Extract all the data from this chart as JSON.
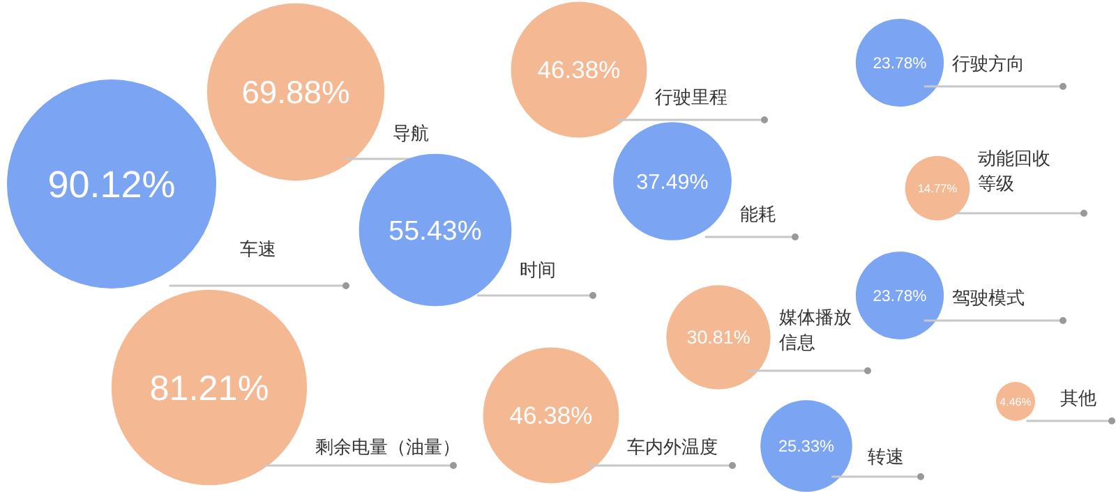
{
  "chart_data": {
    "type": "other",
    "categories": [
      "车速",
      "剩余电量（油量）",
      "导航",
      "时间",
      "车内外温度",
      "行驶里程",
      "能耗",
      "媒体播放信息",
      "转速",
      "行驶方向",
      "动能回收等级",
      "驾驶模式",
      "其他"
    ],
    "values": [
      90.12,
      81.21,
      69.88,
      55.43,
      46.38,
      46.38,
      37.49,
      30.81,
      25.33,
      23.78,
      14.77,
      23.78,
      4.46
    ],
    "value_labels": [
      "90.12%",
      "81.21%",
      "69.88%",
      "55.43%",
      "46.38%",
      "46.38%",
      "37.49%",
      "30.81%",
      "25.33%",
      "23.78%",
      "14.77%",
      "23.78%",
      "4.46%"
    ],
    "colors": [
      "#7ba4f2",
      "#f4b892",
      "#f4b892",
      "#7ba4f2",
      "#f4b892",
      "#f4b892",
      "#7ba4f2",
      "#f4b892",
      "#7ba4f2",
      "#7ba4f2",
      "#f4b892",
      "#7ba4f2",
      "#f4b892"
    ]
  }
}
